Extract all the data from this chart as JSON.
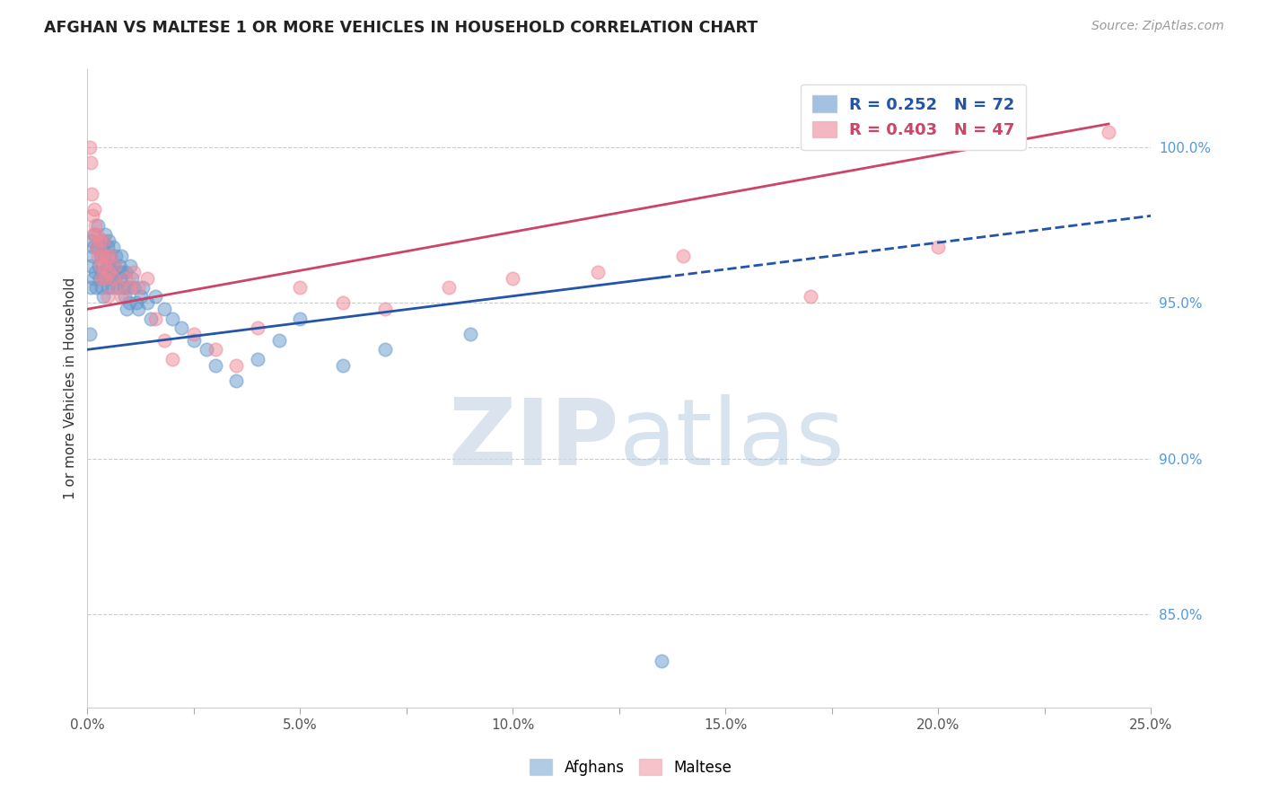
{
  "title": "AFGHAN VS MALTESE 1 OR MORE VEHICLES IN HOUSEHOLD CORRELATION CHART",
  "source": "Source: ZipAtlas.com",
  "ylabel": "1 or more Vehicles in Household",
  "xlim": [
    0.0,
    25.0
  ],
  "ylim": [
    82.0,
    102.5
  ],
  "xticks": [
    0.0,
    2.5,
    5.0,
    7.5,
    10.0,
    12.5,
    15.0,
    17.5,
    20.0,
    22.5,
    25.0
  ],
  "xtick_labels": [
    "0.0%",
    "",
    "5.0%",
    "",
    "10.0%",
    "",
    "15.0%",
    "",
    "20.0%",
    "",
    "25.0%"
  ],
  "yticks_right": [
    85.0,
    90.0,
    95.0,
    100.0
  ],
  "ytick_labels_right": [
    "85.0%",
    "90.0%",
    "95.0%",
    "100.0%"
  ],
  "grid_color": "#cccccc",
  "background_color": "#ffffff",
  "afghan_color": "#6699cc",
  "maltese_color": "#ee8899",
  "afghan_line_color": "#2255aa",
  "maltese_line_color": "#cc4466",
  "legend_blue_label": "R = 0.252   N = 72",
  "legend_pink_label": "R = 0.403   N = 47",
  "afghan_trend": [
    93.5,
    97.8
  ],
  "maltese_trend": [
    94.8,
    101.0
  ],
  "afghan_x": [
    0.05,
    0.07,
    0.08,
    0.1,
    0.12,
    0.14,
    0.15,
    0.17,
    0.18,
    0.2,
    0.22,
    0.25,
    0.27,
    0.28,
    0.3,
    0.32,
    0.33,
    0.35,
    0.37,
    0.38,
    0.4,
    0.42,
    0.43,
    0.45,
    0.47,
    0.48,
    0.5,
    0.52,
    0.53,
    0.55,
    0.57,
    0.58,
    0.6,
    0.62,
    0.65,
    0.67,
    0.7,
    0.72,
    0.75,
    0.78,
    0.8,
    0.82,
    0.85,
    0.88,
    0.9,
    0.92,
    0.95,
    0.98,
    1.0,
    1.05,
    1.1,
    1.15,
    1.2,
    1.25,
    1.3,
    1.4,
    1.5,
    1.6,
    1.8,
    2.0,
    2.2,
    2.5,
    2.8,
    3.0,
    3.5,
    4.0,
    4.5,
    5.0,
    6.0,
    7.0,
    9.0,
    13.5
  ],
  "afghan_y": [
    94.0,
    95.5,
    96.2,
    97.0,
    96.5,
    95.8,
    96.8,
    97.2,
    96.0,
    95.5,
    96.8,
    97.5,
    96.2,
    95.8,
    96.5,
    96.0,
    95.5,
    96.8,
    97.0,
    95.2,
    96.5,
    97.2,
    95.8,
    96.2,
    96.8,
    95.5,
    97.0,
    96.2,
    95.8,
    96.5,
    96.0,
    95.5,
    96.8,
    96.2,
    95.8,
    96.5,
    96.0,
    95.5,
    96.2,
    95.8,
    96.5,
    96.0,
    95.5,
    95.2,
    96.0,
    94.8,
    95.5,
    95.0,
    96.2,
    95.8,
    95.5,
    95.0,
    94.8,
    95.2,
    95.5,
    95.0,
    94.5,
    95.2,
    94.8,
    94.5,
    94.2,
    93.8,
    93.5,
    93.0,
    92.5,
    93.2,
    93.8,
    94.5,
    93.0,
    93.5,
    94.0,
    83.5
  ],
  "maltese_x": [
    0.05,
    0.08,
    0.1,
    0.12,
    0.14,
    0.16,
    0.18,
    0.2,
    0.22,
    0.25,
    0.28,
    0.3,
    0.32,
    0.35,
    0.38,
    0.4,
    0.42,
    0.45,
    0.48,
    0.5,
    0.55,
    0.6,
    0.65,
    0.7,
    0.8,
    0.9,
    1.0,
    1.1,
    1.2,
    1.4,
    1.6,
    1.8,
    2.0,
    2.5,
    3.0,
    3.5,
    4.0,
    5.0,
    6.0,
    7.0,
    8.5,
    10.0,
    12.0,
    14.0,
    17.0,
    20.0,
    24.0
  ],
  "maltese_y": [
    100.0,
    99.5,
    98.5,
    97.8,
    97.2,
    98.0,
    97.5,
    96.8,
    97.2,
    96.5,
    97.0,
    96.2,
    95.8,
    96.5,
    97.0,
    96.2,
    95.8,
    96.5,
    95.2,
    96.0,
    96.5,
    95.8,
    96.2,
    95.5,
    95.2,
    95.8,
    95.5,
    96.0,
    95.5,
    95.8,
    94.5,
    93.8,
    93.2,
    94.0,
    93.5,
    93.0,
    94.2,
    95.5,
    95.0,
    94.8,
    95.5,
    95.8,
    96.0,
    96.5,
    95.2,
    96.8,
    100.5
  ]
}
